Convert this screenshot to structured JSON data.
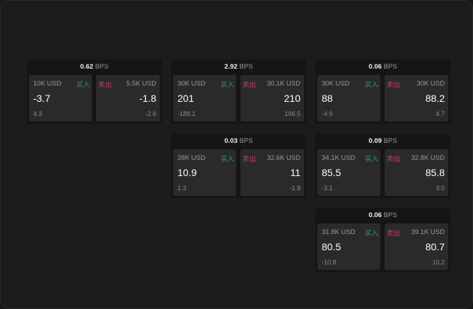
{
  "unit": "BPS",
  "buy_label": "买入",
  "sell_label": "卖出",
  "colors": {
    "buy": "#2fa35a",
    "sell": "#d03b5c"
  },
  "cards": [
    {
      "spread": "0.62",
      "buy": {
        "size": "10K USD",
        "price": "-3.7",
        "change": "4.3"
      },
      "sell": {
        "size": "5.5K USD",
        "price": "-1.8",
        "change": "-2.6"
      }
    },
    {
      "spread": "2.92",
      "buy": {
        "size": "30K USD",
        "price": "201",
        "change": "-188.1"
      },
      "sell": {
        "size": "30.1K USD",
        "price": "210",
        "change": "196.5"
      }
    },
    {
      "spread": "0.06",
      "buy": {
        "size": "30K USD",
        "price": "88",
        "change": "-4.9"
      },
      "sell": {
        "size": "30K USD",
        "price": "88.2",
        "change": "4.7"
      }
    },
    {
      "spread": "0.03",
      "buy": {
        "size": "28K USD",
        "price": "10.9",
        "change": "1.3"
      },
      "sell": {
        "size": "32.6K USD",
        "price": "11",
        "change": "-1.8"
      }
    },
    {
      "spread": "0.09",
      "buy": {
        "size": "34.1K USD",
        "price": "85.5",
        "change": "-3.1"
      },
      "sell": {
        "size": "32.8K USD",
        "price": "85.8",
        "change": "3.0"
      }
    },
    {
      "spread": "0.06",
      "buy": {
        "size": "31.8K USD",
        "price": "80.5",
        "change": "-10.8"
      },
      "sell": {
        "size": "39.1K USD",
        "price": "80.7",
        "change": "10.2"
      }
    }
  ]
}
